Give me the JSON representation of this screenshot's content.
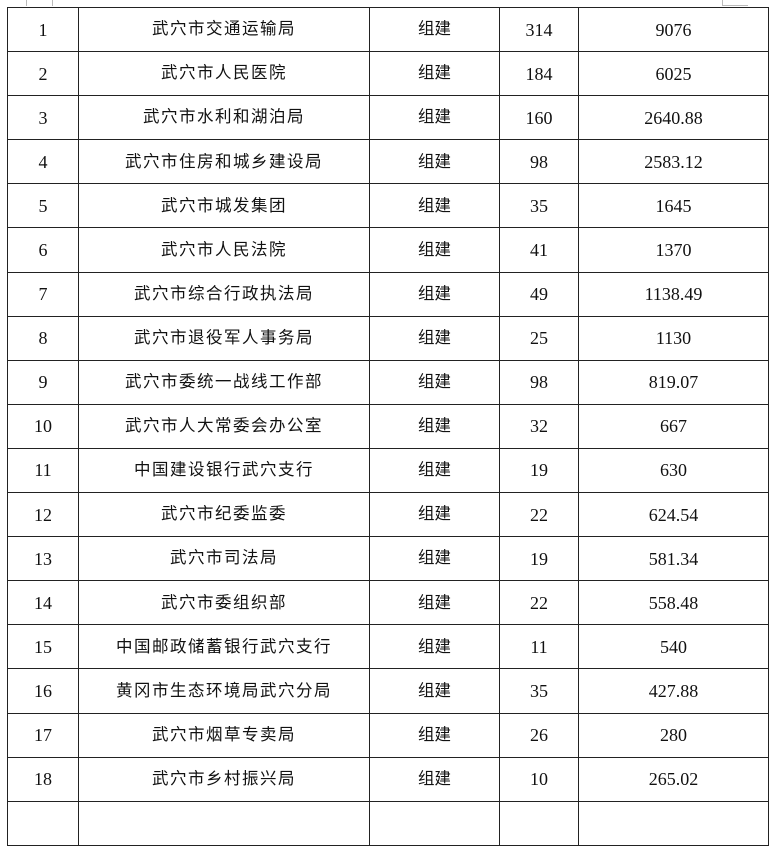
{
  "rows": [
    {
      "no": "1",
      "unit": "武穴市交通运输局",
      "type": "组建",
      "count": "314",
      "amount": "9076"
    },
    {
      "no": "2",
      "unit": "武穴市人民医院",
      "type": "组建",
      "count": "184",
      "amount": "6025"
    },
    {
      "no": "3",
      "unit": "武穴市水利和湖泊局",
      "type": "组建",
      "count": "160",
      "amount": "2640.88"
    },
    {
      "no": "4",
      "unit": "武穴市住房和城乡建设局",
      "type": "组建",
      "count": "98",
      "amount": "2583.12"
    },
    {
      "no": "5",
      "unit": "武穴市城发集团",
      "type": "组建",
      "count": "35",
      "amount": "1645"
    },
    {
      "no": "6",
      "unit": "武穴市人民法院",
      "type": "组建",
      "count": "41",
      "amount": "1370"
    },
    {
      "no": "7",
      "unit": "武穴市综合行政执法局",
      "type": "组建",
      "count": "49",
      "amount": "1138.49"
    },
    {
      "no": "8",
      "unit": "武穴市退役军人事务局",
      "type": "组建",
      "count": "25",
      "amount": "1130"
    },
    {
      "no": "9",
      "unit": "武穴市委统一战线工作部",
      "type": "组建",
      "count": "98",
      "amount": "819.07"
    },
    {
      "no": "10",
      "unit": "武穴市人大常委会办公室",
      "type": "组建",
      "count": "32",
      "amount": "667"
    },
    {
      "no": "11",
      "unit": "中国建设银行武穴支行",
      "type": "组建",
      "count": "19",
      "amount": "630"
    },
    {
      "no": "12",
      "unit": "武穴市纪委监委",
      "type": "组建",
      "count": "22",
      "amount": "624.54"
    },
    {
      "no": "13",
      "unit": "武穴市司法局",
      "type": "组建",
      "count": "19",
      "amount": "581.34"
    },
    {
      "no": "14",
      "unit": "武穴市委组织部",
      "type": "组建",
      "count": "22",
      "amount": "558.48"
    },
    {
      "no": "15",
      "unit": "中国邮政储蓄银行武穴支行",
      "type": "组建",
      "count": "11",
      "amount": "540"
    },
    {
      "no": "16",
      "unit": "黄冈市生态环境局武穴分局",
      "type": "组建",
      "count": "35",
      "amount": "427.88"
    },
    {
      "no": "17",
      "unit": "武穴市烟草专卖局",
      "type": "组建",
      "count": "26",
      "amount": "280"
    },
    {
      "no": "18",
      "unit": "武穴市乡村振兴局",
      "type": "组建",
      "count": "10",
      "amount": "265.02"
    }
  ]
}
